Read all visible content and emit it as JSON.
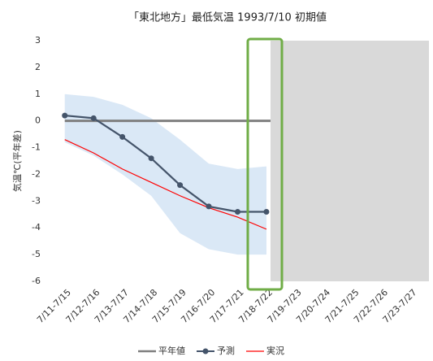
{
  "chart_data": {
    "type": "line",
    "title": "「東北地方」最低気温 1993/7/10 初期値",
    "y_label": "気温℃(平年差)",
    "categories": [
      "7/11-7/15",
      "7/12-7/16",
      "7/13-7/17",
      "7/14-7/18",
      "7/15-7/19",
      "7/16-7/20",
      "7/17-7/21",
      "7/18-7/22",
      "7/19-7/23",
      "7/20-7/24",
      "7/21-7/25",
      "7/22-7/26",
      "7/23-7/27"
    ],
    "series": [
      {
        "name": "平年値",
        "color": "#7f7f7f",
        "values": [
          0,
          0,
          0,
          0,
          0,
          0,
          0,
          0,
          0,
          0,
          0,
          0,
          0
        ]
      },
      {
        "name": "予測",
        "color": "#44546a",
        "values": [
          0.2,
          0.1,
          -0.6,
          -1.4,
          -2.4,
          -3.2,
          -3.4,
          -3.4,
          null,
          null,
          null,
          null,
          null
        ]
      },
      {
        "name": "実況",
        "color": "#ff0000",
        "values": [
          -0.7,
          -1.2,
          -1.8,
          -2.3,
          -2.8,
          -3.25,
          -3.6,
          -4.05,
          null,
          null,
          null,
          null,
          null
        ]
      }
    ],
    "band": {
      "color": "#dae8f6",
      "upper": [
        1.0,
        0.9,
        0.6,
        0.1,
        -0.7,
        -1.6,
        -1.8,
        -1.7,
        null,
        null,
        null,
        null,
        null
      ],
      "lower": [
        -0.8,
        -1.3,
        -2.0,
        -2.8,
        -4.2,
        -4.8,
        -5.0,
        -5.0,
        null,
        null,
        null,
        null,
        null
      ]
    },
    "ylim": [
      -6,
      3
    ],
    "yticks": [
      -6,
      -5,
      -4,
      -3,
      -2,
      -1,
      0,
      1,
      2,
      3
    ],
    "grid": false,
    "legend": "bottom"
  }
}
